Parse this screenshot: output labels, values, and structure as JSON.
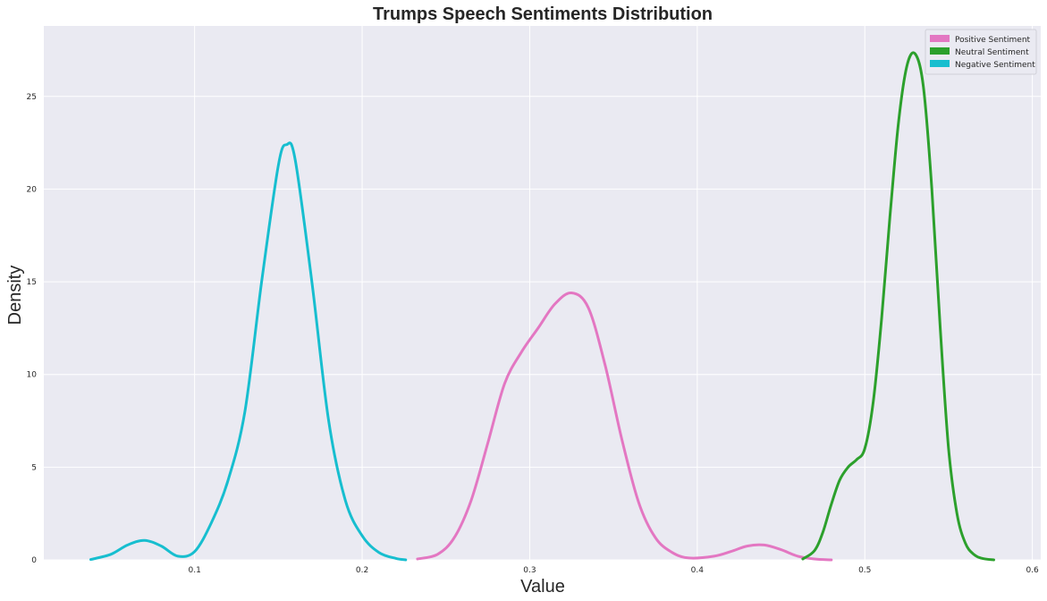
{
  "chart_data": {
    "type": "line",
    "title": "Trumps Speech Sentiments Distribution",
    "xlabel": "Value",
    "ylabel": "Density",
    "xlim": [
      0.01,
      0.605
    ],
    "ylim": [
      0,
      28.8
    ],
    "xticks": [
      0.1,
      0.2,
      0.3,
      0.4,
      0.5,
      0.6
    ],
    "xtick_labels": [
      "0.1",
      "0.2",
      "0.3",
      "0.4",
      "0.5",
      "0.6"
    ],
    "yticks": [
      0,
      5,
      10,
      15,
      20,
      25
    ],
    "ytick_labels": [
      "0",
      "5",
      "10",
      "15",
      "20",
      "25"
    ],
    "grid": true,
    "legend_position": "top-right",
    "background": "#eaeaf2",
    "series": [
      {
        "name": "Positive Sentiment",
        "color": "#e377c2",
        "x": [
          0.233,
          0.245,
          0.255,
          0.265,
          0.275,
          0.285,
          0.295,
          0.305,
          0.315,
          0.325,
          0.335,
          0.345,
          0.355,
          0.365,
          0.375,
          0.385,
          0.395,
          0.41,
          0.42,
          0.43,
          0.44,
          0.45,
          0.46,
          0.47,
          0.48
        ],
        "y": [
          0.05,
          0.3,
          1.2,
          3.2,
          6.3,
          9.5,
          11.2,
          12.5,
          13.8,
          14.4,
          13.6,
          10.5,
          6.5,
          3.1,
          1.2,
          0.4,
          0.1,
          0.2,
          0.45,
          0.75,
          0.8,
          0.55,
          0.2,
          0.05,
          0.0
        ]
      },
      {
        "name": "Neutral Sentiment",
        "color": "#2ca02c",
        "x": [
          0.463,
          0.47,
          0.475,
          0.48,
          0.485,
          0.49,
          0.495,
          0.5,
          0.505,
          0.51,
          0.515,
          0.52,
          0.525,
          0.53,
          0.535,
          0.54,
          0.545,
          0.55,
          0.555,
          0.56,
          0.565,
          0.57,
          0.577
        ],
        "y": [
          0.05,
          0.5,
          1.5,
          3.0,
          4.3,
          5.0,
          5.4,
          6.0,
          8.5,
          13.0,
          18.5,
          23.5,
          26.6,
          27.3,
          25.5,
          20.0,
          12.5,
          6.0,
          2.5,
          0.9,
          0.3,
          0.08,
          0.0
        ]
      },
      {
        "name": "Negative Sentiment",
        "color": "#17becf",
        "x": [
          0.038,
          0.05,
          0.06,
          0.07,
          0.08,
          0.09,
          0.1,
          0.11,
          0.12,
          0.13,
          0.14,
          0.15,
          0.155,
          0.16,
          0.17,
          0.18,
          0.19,
          0.2,
          0.21,
          0.22,
          0.226
        ],
        "y": [
          0.02,
          0.3,
          0.8,
          1.05,
          0.75,
          0.2,
          0.45,
          2.0,
          4.3,
          8.0,
          15.0,
          21.3,
          22.4,
          21.6,
          15.0,
          7.5,
          3.2,
          1.3,
          0.4,
          0.08,
          0.0
        ]
      }
    ]
  }
}
